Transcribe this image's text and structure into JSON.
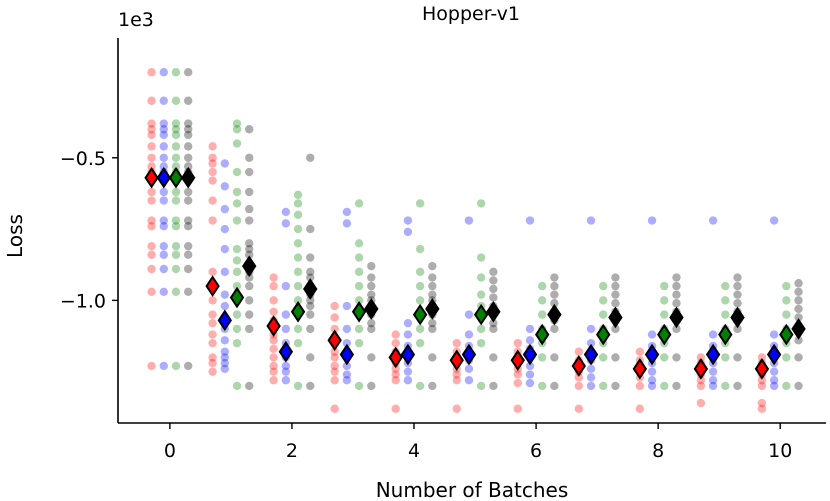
{
  "chart_data": {
    "type": "scatter",
    "title": "Hopper-v1",
    "xlabel": "Number of Batches",
    "ylabel": "Loss",
    "y_multiplier_label": "1e3",
    "xlim": [
      -0.85,
      10.75
    ],
    "ylim": [
      -1.43,
      -0.08
    ],
    "x_ticks": [
      0,
      2,
      4,
      6,
      8,
      10
    ],
    "x_tick_labels": [
      "0",
      "2",
      "4",
      "6",
      "8",
      "10"
    ],
    "y_ticks": [
      -0.5,
      -1.0
    ],
    "y_tick_labels": [
      "−0.5",
      "−1.0"
    ],
    "x_offsets": [
      -0.3,
      -0.1,
      0.1,
      0.3
    ],
    "grid": false,
    "legend": "none",
    "series": [
      {
        "color": "#ff0000",
        "points": [
          [
            0,
            [
              -0.2,
              -0.3,
              -0.38,
              -0.4,
              -0.42,
              -0.46,
              -0.5,
              -0.53,
              -0.55,
              -0.58,
              -0.62,
              -0.65,
              -0.72,
              -0.74,
              -0.81,
              -0.84,
              -0.89,
              -0.97,
              -1.23
            ]
          ],
          [
            1,
            [
              -0.46,
              -0.5,
              -0.52,
              -0.55,
              -0.58,
              -0.65,
              -0.72,
              -0.9,
              -0.94,
              -1.0,
              -1.05,
              -1.08,
              -1.12,
              -1.15,
              -1.2,
              -1.22,
              -1.25
            ]
          ],
          [
            2,
            [
              -0.92,
              -0.95,
              -1.0,
              -1.04,
              -1.07,
              -1.1,
              -1.12,
              -1.14,
              -1.17,
              -1.2,
              -1.23,
              -1.25,
              -1.28
            ]
          ],
          [
            3,
            [
              -1.02,
              -1.06,
              -1.1,
              -1.13,
              -1.15,
              -1.18,
              -1.2,
              -1.23,
              -1.25,
              -1.28,
              -1.38
            ]
          ],
          [
            4,
            [
              -1.12,
              -1.15,
              -1.18,
              -1.2,
              -1.22,
              -1.24,
              -1.26,
              -1.28,
              -1.38
            ]
          ],
          [
            5,
            [
              -1.15,
              -1.18,
              -1.2,
              -1.22,
              -1.24,
              -1.26,
              -1.28,
              -1.38
            ]
          ],
          [
            6,
            [
              -1.15,
              -1.18,
              -1.2,
              -1.22,
              -1.24,
              -1.26,
              -1.29,
              -1.38
            ]
          ],
          [
            7,
            [
              -1.18,
              -1.21,
              -1.23,
              -1.25,
              -1.27,
              -1.3,
              -1.38
            ]
          ],
          [
            8,
            [
              -1.18,
              -1.21,
              -1.23,
              -1.25,
              -1.27,
              -1.3,
              -1.38
            ]
          ],
          [
            9,
            [
              -1.2,
              -1.22,
              -1.24,
              -1.26,
              -1.28,
              -1.3,
              -1.36
            ]
          ],
          [
            10,
            [
              -1.2,
              -1.22,
              -1.24,
              -1.26,
              -1.28,
              -1.3,
              -1.36,
              -1.38
            ]
          ]
        ],
        "means": [
          [
            0,
            -0.57
          ],
          [
            1,
            -0.95
          ],
          [
            2,
            -1.09
          ],
          [
            3,
            -1.14
          ],
          [
            4,
            -1.2
          ],
          [
            5,
            -1.21
          ],
          [
            6,
            -1.21
          ],
          [
            7,
            -1.23
          ],
          [
            8,
            -1.24
          ],
          [
            9,
            -1.24
          ],
          [
            10,
            -1.24
          ]
        ]
      },
      {
        "color": "#0000ff",
        "points": [
          [
            0,
            [
              -0.2,
              -0.3,
              -0.38,
              -0.4,
              -0.42,
              -0.46,
              -0.5,
              -0.53,
              -0.55,
              -0.58,
              -0.62,
              -0.65,
              -0.72,
              -0.74,
              -0.81,
              -0.84,
              -0.89,
              -0.97,
              -1.23
            ]
          ],
          [
            1,
            [
              -0.52,
              -0.6,
              -0.68,
              -0.75,
              -0.82,
              -0.9,
              -0.98,
              -1.02,
              -1.06,
              -1.1,
              -1.14,
              -1.18,
              -1.2,
              -1.22,
              -1.24
            ]
          ],
          [
            2,
            [
              -0.69,
              -0.73,
              -0.95,
              -1.05,
              -1.1,
              -1.15,
              -1.18,
              -1.2,
              -1.23,
              -1.25,
              -1.28
            ]
          ],
          [
            3,
            [
              -0.69,
              -0.73,
              -1.02,
              -1.1,
              -1.15,
              -1.18,
              -1.2,
              -1.23,
              -1.26,
              -1.28
            ]
          ],
          [
            4,
            [
              -0.72,
              -0.76,
              -1.08,
              -1.12,
              -1.16,
              -1.19,
              -1.22,
              -1.25,
              -1.28
            ]
          ],
          [
            5,
            [
              -0.72,
              -1.05,
              -1.12,
              -1.16,
              -1.19,
              -1.21,
              -1.24,
              -1.28
            ]
          ],
          [
            6,
            [
              -0.72,
              -1.1,
              -1.14,
              -1.17,
              -1.2,
              -1.23,
              -1.26,
              -1.29
            ]
          ],
          [
            7,
            [
              -0.72,
              -1.1,
              -1.15,
              -1.18,
              -1.21,
              -1.24,
              -1.27,
              -1.3
            ]
          ],
          [
            8,
            [
              -0.72,
              -1.12,
              -1.16,
              -1.19,
              -1.22,
              -1.25,
              -1.28,
              -1.3
            ]
          ],
          [
            9,
            [
              -0.72,
              -1.12,
              -1.16,
              -1.19,
              -1.22,
              -1.25,
              -1.28,
              -1.3
            ]
          ],
          [
            10,
            [
              -0.72,
              -1.12,
              -1.16,
              -1.19,
              -1.22,
              -1.25,
              -1.28,
              -1.3
            ]
          ]
        ],
        "means": [
          [
            0,
            -0.57
          ],
          [
            1,
            -1.07
          ],
          [
            2,
            -1.18
          ],
          [
            3,
            -1.19
          ],
          [
            4,
            -1.19
          ],
          [
            5,
            -1.19
          ],
          [
            6,
            -1.19
          ],
          [
            7,
            -1.19
          ],
          [
            8,
            -1.19
          ],
          [
            9,
            -1.19
          ],
          [
            10,
            -1.19
          ]
        ]
      },
      {
        "color": "#008000",
        "points": [
          [
            0,
            [
              -0.2,
              -0.3,
              -0.38,
              -0.4,
              -0.42,
              -0.46,
              -0.5,
              -0.53,
              -0.55,
              -0.58,
              -0.62,
              -0.65,
              -0.72,
              -0.74,
              -0.81,
              -0.84,
              -0.89,
              -0.97,
              -1.23
            ]
          ],
          [
            1,
            [
              -0.38,
              -0.4,
              -0.45,
              -0.55,
              -0.62,
              -0.66,
              -0.72,
              -0.82,
              -0.86,
              -0.9,
              -0.95,
              -1.0,
              -1.05,
              -1.1,
              -1.15,
              -1.3
            ]
          ],
          [
            2,
            [
              -0.63,
              -0.66,
              -0.7,
              -0.75,
              -0.8,
              -0.85,
              -0.9,
              -0.95,
              -1.0,
              -1.05,
              -1.1,
              -1.15,
              -1.3
            ]
          ],
          [
            3,
            [
              -0.66,
              -0.8,
              -0.85,
              -0.9,
              -0.95,
              -1.0,
              -1.05,
              -1.1,
              -1.15,
              -1.3
            ]
          ],
          [
            4,
            [
              -0.66,
              -0.82,
              -0.9,
              -0.95,
              -1.0,
              -1.05,
              -1.1,
              -1.15,
              -1.3
            ]
          ],
          [
            5,
            [
              -0.66,
              -0.85,
              -0.92,
              -0.98,
              -1.02,
              -1.06,
              -1.1,
              -1.15,
              -1.3
            ]
          ],
          [
            6,
            [
              -0.95,
              -1.0,
              -1.05,
              -1.1,
              -1.15,
              -1.2,
              -1.3
            ]
          ],
          [
            7,
            [
              -0.95,
              -1.0,
              -1.05,
              -1.1,
              -1.15,
              -1.2,
              -1.3
            ]
          ],
          [
            8,
            [
              -0.95,
              -1.0,
              -1.05,
              -1.1,
              -1.15,
              -1.2,
              -1.3
            ]
          ],
          [
            9,
            [
              -0.95,
              -1.0,
              -1.05,
              -1.1,
              -1.15,
              -1.2,
              -1.3
            ]
          ],
          [
            10,
            [
              -0.95,
              -1.0,
              -1.05,
              -1.1,
              -1.15,
              -1.2,
              -1.3
            ]
          ]
        ],
        "means": [
          [
            0,
            -0.57
          ],
          [
            1,
            -0.99
          ],
          [
            2,
            -1.04
          ],
          [
            3,
            -1.04
          ],
          [
            4,
            -1.05
          ],
          [
            5,
            -1.05
          ],
          [
            6,
            -1.12
          ],
          [
            7,
            -1.12
          ],
          [
            8,
            -1.12
          ],
          [
            9,
            -1.12
          ],
          [
            10,
            -1.12
          ]
        ]
      },
      {
        "color": "#000000",
        "points": [
          [
            0,
            [
              -0.2,
              -0.3,
              -0.38,
              -0.4,
              -0.42,
              -0.46,
              -0.5,
              -0.53,
              -0.55,
              -0.58,
              -0.62,
              -0.65,
              -0.72,
              -0.74,
              -0.81,
              -0.84,
              -0.89,
              -0.97,
              -1.23
            ]
          ],
          [
            1,
            [
              -0.4,
              -0.5,
              -0.55,
              -0.62,
              -0.68,
              -0.72,
              -0.8,
              -0.82,
              -0.84,
              -0.87,
              -0.9,
              -0.92,
              -0.95,
              -1.0,
              -1.05,
              -1.1,
              -1.3
            ]
          ],
          [
            2,
            [
              -0.5,
              -0.75,
              -0.85,
              -0.9,
              -0.92,
              -0.95,
              -0.98,
              -1.0,
              -1.02,
              -1.05,
              -1.1,
              -1.2,
              -1.3
            ]
          ],
          [
            3,
            [
              -0.88,
              -0.92,
              -0.95,
              -0.98,
              -1.0,
              -1.02,
              -1.05,
              -1.08,
              -1.1,
              -1.2,
              -1.3
            ]
          ],
          [
            4,
            [
              -0.88,
              -0.92,
              -0.95,
              -0.98,
              -1.0,
              -1.02,
              -1.05,
              -1.08,
              -1.1,
              -1.2,
              -1.3
            ]
          ],
          [
            5,
            [
              -0.9,
              -0.93,
              -0.96,
              -0.99,
              -1.02,
              -1.05,
              -1.08,
              -1.1,
              -1.2,
              -1.3
            ]
          ],
          [
            6,
            [
              -0.92,
              -0.95,
              -0.98,
              -1.01,
              -1.04,
              -1.07,
              -1.1,
              -1.2,
              -1.3
            ]
          ],
          [
            7,
            [
              -0.92,
              -0.95,
              -0.98,
              -1.01,
              -1.04,
              -1.07,
              -1.1,
              -1.2,
              -1.3
            ]
          ],
          [
            8,
            [
              -0.92,
              -0.95,
              -0.98,
              -1.01,
              -1.04,
              -1.07,
              -1.1,
              -1.2,
              -1.3
            ]
          ],
          [
            9,
            [
              -0.92,
              -0.95,
              -0.98,
              -1.01,
              -1.04,
              -1.07,
              -1.1,
              -1.2,
              -1.3
            ]
          ],
          [
            10,
            [
              -0.94,
              -0.97,
              -1.0,
              -1.03,
              -1.06,
              -1.1,
              -1.14,
              -1.2,
              -1.3
            ]
          ]
        ],
        "means": [
          [
            0,
            -0.57
          ],
          [
            1,
            -0.88
          ],
          [
            2,
            -0.96
          ],
          [
            3,
            -1.03
          ],
          [
            4,
            -1.03
          ],
          [
            5,
            -1.04
          ],
          [
            6,
            -1.05
          ],
          [
            7,
            -1.06
          ],
          [
            8,
            -1.06
          ],
          [
            9,
            -1.06
          ],
          [
            10,
            -1.1
          ]
        ]
      }
    ]
  }
}
